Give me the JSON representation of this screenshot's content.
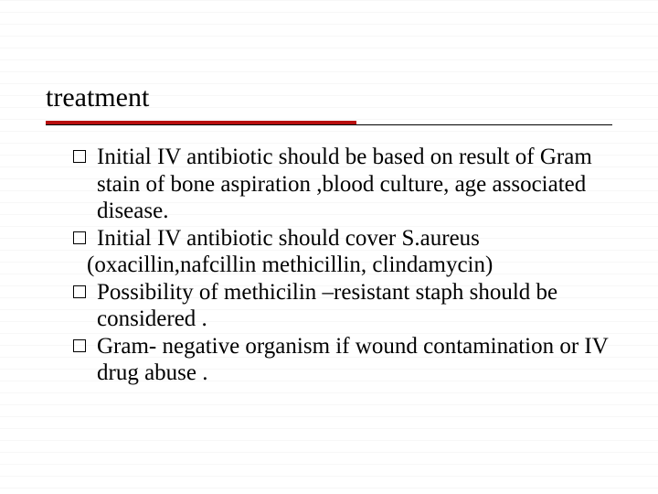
{
  "title": "treatment",
  "accent_color": "#b80f0f",
  "title_fontsize": 30,
  "body_fontsize": 25,
  "text_color": "#000000",
  "background_color": "#ffffff",
  "rule_line_color": "#f2f2f2",
  "bullets": [
    {
      "text": "Initial IV antibiotic should be based on result of Gram stain of bone aspiration ,blood culture, age associated disease."
    },
    {
      "text": "Initial IV antibiotic should cover S.aureus",
      "sub": "(oxacillin,nafcillin  methicillin, clindamycin)"
    },
    {
      "text": " Possibility of methicilin –resistant staph should be considered ."
    },
    {
      "text": "Gram- negative organism if wound contamination or IV drug abuse ."
    }
  ]
}
